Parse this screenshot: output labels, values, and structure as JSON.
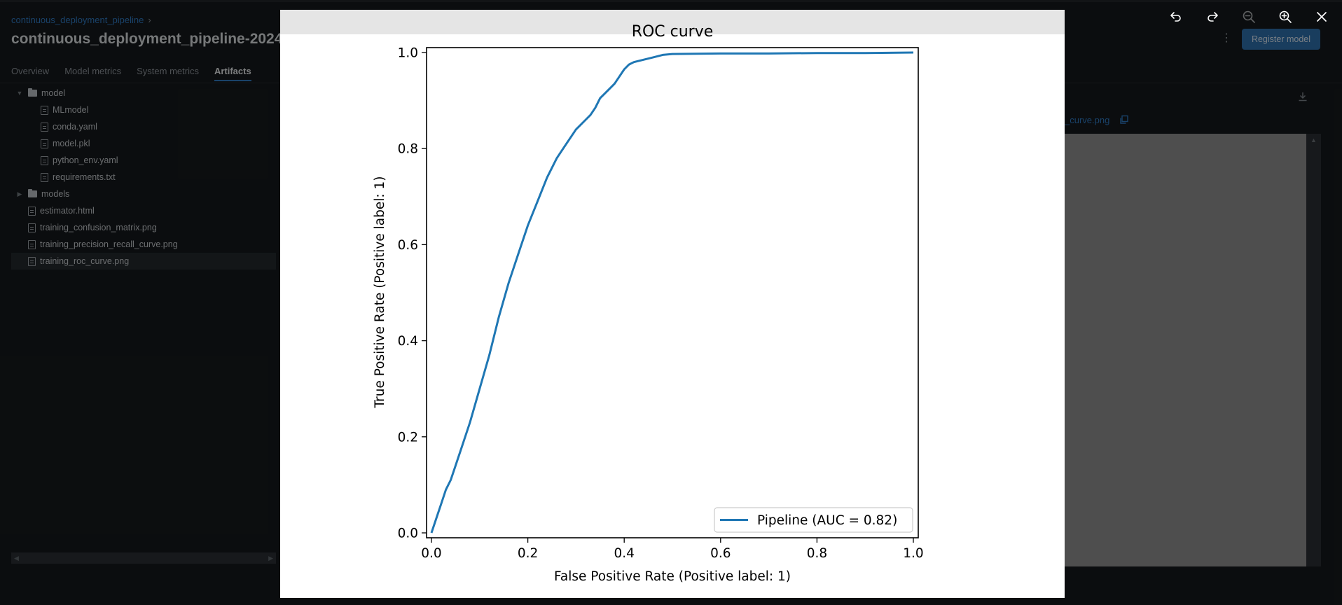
{
  "app": {
    "breadcrumb": "continuous_deployment_pipeline",
    "breadcrumb_sep": "›",
    "run_title": "continuous_deployment_pipeline-2024",
    "tabs": [
      {
        "label": "Overview"
      },
      {
        "label": "Model metrics"
      },
      {
        "label": "System metrics"
      },
      {
        "label": "Artifacts",
        "active": true
      }
    ],
    "tree": [
      {
        "label": "model",
        "type": "folder",
        "level": 0,
        "expanded": true
      },
      {
        "label": "MLmodel",
        "type": "file",
        "level": 1
      },
      {
        "label": "conda.yaml",
        "type": "file",
        "level": 1
      },
      {
        "label": "model.pkl",
        "type": "file",
        "level": 1
      },
      {
        "label": "python_env.yaml",
        "type": "file",
        "level": 1
      },
      {
        "label": "requirements.txt",
        "type": "file",
        "level": 1
      },
      {
        "label": "models",
        "type": "folder",
        "level": 0,
        "expanded": false
      },
      {
        "label": "estimator.html",
        "type": "file",
        "level": 0
      },
      {
        "label": "training_confusion_matrix.png",
        "type": "file",
        "level": 0
      },
      {
        "label": "training_precision_recall_curve.png",
        "type": "file",
        "level": 0
      },
      {
        "label": "training_roc_curve.png",
        "type": "file",
        "level": 0,
        "selected": true
      }
    ],
    "register_button": "Register model",
    "kebab": "⋮",
    "file_label": "_curve.png",
    "scroll_left": "◀",
    "scroll_right": "▶",
    "scroll_up": "▲"
  },
  "toolbar": {
    "icons": [
      "undo-icon",
      "redo-icon",
      "zoom-out-icon",
      "zoom-in-icon",
      "close-icon"
    ]
  },
  "chart_data": {
    "type": "line",
    "title": "ROC curve",
    "xlabel": "False Positive Rate (Positive label: 1)",
    "ylabel": "True Positive Rate (Positive label: 1)",
    "xlim": [
      0,
      1
    ],
    "ylim": [
      0,
      1
    ],
    "xticks": [
      "0.0",
      "0.2",
      "0.4",
      "0.6",
      "0.8",
      "1.0"
    ],
    "yticks": [
      "0.0",
      "0.2",
      "0.4",
      "0.6",
      "0.8",
      "1.0"
    ],
    "grid": false,
    "legend_position": "lower-right",
    "series": [
      {
        "name": "Pipeline (AUC = 0.82)",
        "color": "#1f77b4",
        "x": [
          0.0,
          0.01,
          0.02,
          0.03,
          0.04,
          0.05,
          0.06,
          0.08,
          0.1,
          0.12,
          0.14,
          0.16,
          0.18,
          0.2,
          0.22,
          0.24,
          0.26,
          0.28,
          0.3,
          0.31,
          0.32,
          0.33,
          0.34,
          0.35,
          0.36,
          0.37,
          0.38,
          0.39,
          0.4,
          0.41,
          0.42,
          0.44,
          0.46,
          0.48,
          0.5,
          0.6,
          0.7,
          0.8,
          0.9,
          1.0
        ],
        "y": [
          0.0,
          0.03,
          0.06,
          0.09,
          0.11,
          0.14,
          0.17,
          0.23,
          0.3,
          0.37,
          0.45,
          0.52,
          0.58,
          0.64,
          0.69,
          0.74,
          0.78,
          0.81,
          0.84,
          0.85,
          0.86,
          0.87,
          0.885,
          0.905,
          0.915,
          0.925,
          0.935,
          0.95,
          0.965,
          0.975,
          0.98,
          0.985,
          0.99,
          0.995,
          0.997,
          0.998,
          0.998,
          0.999,
          0.999,
          1.0
        ]
      }
    ]
  }
}
